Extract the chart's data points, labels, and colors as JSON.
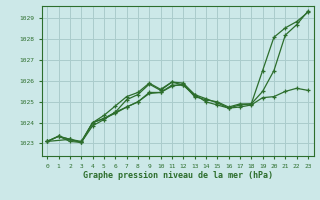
{
  "background_color": "#cce8e8",
  "grid_color": "#aacccc",
  "line_color": "#2d6e2d",
  "title": "Graphe pression niveau de la mer (hPa)",
  "xlim": [
    -0.5,
    23.5
  ],
  "ylim": [
    1022.4,
    1029.6
  ],
  "xticks": [
    0,
    1,
    2,
    3,
    4,
    5,
    6,
    7,
    8,
    9,
    10,
    11,
    12,
    13,
    14,
    15,
    16,
    17,
    18,
    19,
    20,
    21,
    22,
    23
  ],
  "yticks": [
    1023,
    1024,
    1025,
    1026,
    1027,
    1028,
    1029
  ],
  "series": [
    {
      "x": [
        0,
        1,
        2,
        3,
        4,
        5,
        6,
        7,
        8,
        9,
        10,
        11,
        12,
        13,
        14,
        15,
        16,
        17,
        18,
        19,
        20,
        21,
        22,
        23
      ],
      "y": [
        1023.1,
        1023.35,
        1023.2,
        1023.05,
        1024.0,
        1024.2,
        1024.45,
        1024.75,
        1025.0,
        1025.4,
        1025.45,
        1025.75,
        1025.85,
        1025.25,
        1025.1,
        1025.0,
        1024.75,
        1024.9,
        1024.9,
        1025.5,
        1026.5,
        1028.2,
        1028.7,
        1029.35
      ]
    },
    {
      "x": [
        0,
        1,
        2,
        3,
        4,
        5,
        6,
        7,
        8,
        9,
        10,
        11,
        12,
        13,
        14,
        15,
        16,
        17,
        18,
        19,
        20,
        21,
        22,
        23
      ],
      "y": [
        1023.1,
        1023.35,
        1023.1,
        1023.05,
        1023.85,
        1024.15,
        1024.5,
        1025.1,
        1025.35,
        1025.85,
        1025.55,
        1025.95,
        1025.8,
        1025.35,
        1025.0,
        1024.85,
        1024.7,
        1024.75,
        1024.85,
        1025.2,
        1025.25,
        1025.5,
        1025.65,
        1025.55
      ]
    },
    {
      "x": [
        0,
        2,
        3,
        4,
        5,
        6,
        7,
        8,
        9,
        10,
        11,
        12,
        13,
        14,
        15,
        16,
        17,
        18,
        19,
        20,
        21,
        22,
        23
      ],
      "y": [
        1023.1,
        1023.2,
        1023.1,
        1024.0,
        1024.35,
        1024.8,
        1025.25,
        1025.45,
        1025.9,
        1025.6,
        1025.95,
        1025.9,
        1025.35,
        1025.15,
        1024.95,
        1024.7,
        1024.85,
        1024.9,
        1026.5,
        1028.1,
        1028.55,
        1028.85,
        1029.3
      ]
    },
    {
      "x": [
        0,
        1,
        2,
        3,
        4,
        5,
        6,
        7,
        8,
        9,
        10,
        11,
        12,
        13
      ],
      "y": [
        1023.1,
        1023.35,
        1023.2,
        1023.05,
        1024.0,
        1024.2,
        1024.5,
        1024.75,
        1025.0,
        1025.45,
        1025.45,
        1025.8,
        1025.8,
        1025.3
      ]
    }
  ]
}
